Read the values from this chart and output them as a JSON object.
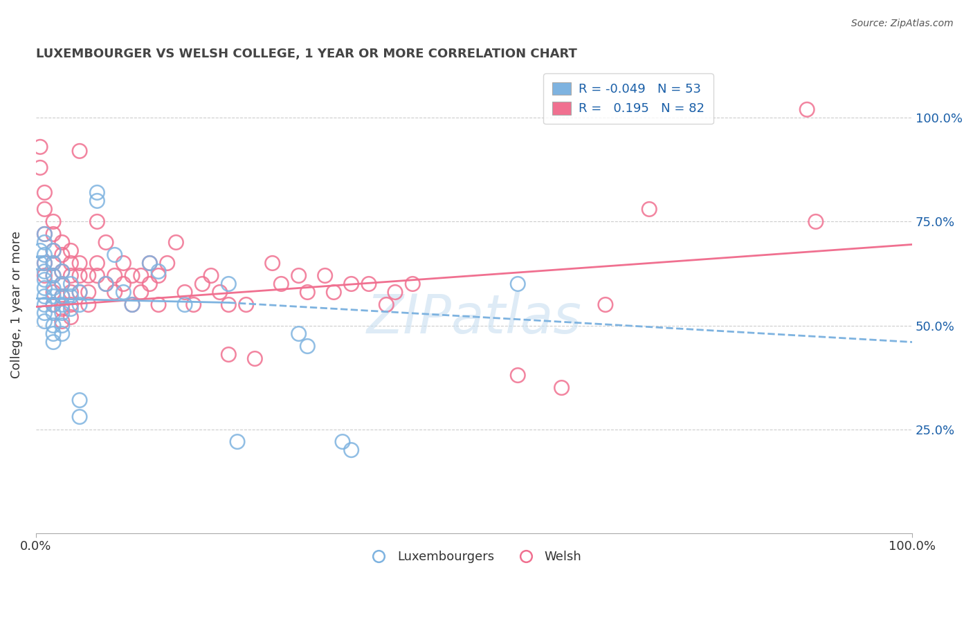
{
  "title": "LUXEMBOURGER VS WELSH COLLEGE, 1 YEAR OR MORE CORRELATION CHART",
  "source_text": "Source: ZipAtlas.com",
  "ylabel": "College, 1 year or more",
  "xlim": [
    0.0,
    1.0
  ],
  "ylim": [
    0.0,
    1.1
  ],
  "ytick_positions": [
    0.25,
    0.5,
    0.75,
    1.0
  ],
  "ytick_labels": [
    "25.0%",
    "50.0%",
    "75.0%",
    "100.0%"
  ],
  "xtick_positions": [
    0.0,
    1.0
  ],
  "xtick_labels": [
    "0.0%",
    "100.0%"
  ],
  "grid_color": "#cccccc",
  "watermark": "ZIPatlas",
  "blue_color": "#7eb3e0",
  "pink_color": "#f07090",
  "blue_R": -0.049,
  "blue_N": 53,
  "pink_R": 0.195,
  "pink_N": 82,
  "legend_text_color": "#1a5fa8",
  "blue_line_solid": [
    [
      0.0,
      0.565
    ],
    [
      0.22,
      0.555
    ]
  ],
  "blue_line_dashed": [
    [
      0.22,
      0.555
    ],
    [
      1.0,
      0.46
    ]
  ],
  "pink_line": [
    [
      0.0,
      0.545
    ],
    [
      1.0,
      0.695
    ]
  ],
  "blue_scatter": [
    [
      0.005,
      0.68
    ],
    [
      0.005,
      0.65
    ],
    [
      0.01,
      0.72
    ],
    [
      0.01,
      0.7
    ],
    [
      0.01,
      0.67
    ],
    [
      0.01,
      0.65
    ],
    [
      0.01,
      0.63
    ],
    [
      0.01,
      0.61
    ],
    [
      0.01,
      0.59
    ],
    [
      0.01,
      0.57
    ],
    [
      0.01,
      0.55
    ],
    [
      0.01,
      0.53
    ],
    [
      0.01,
      0.51
    ],
    [
      0.02,
      0.68
    ],
    [
      0.02,
      0.65
    ],
    [
      0.02,
      0.62
    ],
    [
      0.02,
      0.59
    ],
    [
      0.02,
      0.57
    ],
    [
      0.02,
      0.55
    ],
    [
      0.02,
      0.53
    ],
    [
      0.02,
      0.5
    ],
    [
      0.02,
      0.48
    ],
    [
      0.02,
      0.46
    ],
    [
      0.03,
      0.63
    ],
    [
      0.03,
      0.6
    ],
    [
      0.03,
      0.57
    ],
    [
      0.03,
      0.55
    ],
    [
      0.03,
      0.53
    ],
    [
      0.03,
      0.5
    ],
    [
      0.03,
      0.48
    ],
    [
      0.04,
      0.6
    ],
    [
      0.04,
      0.57
    ],
    [
      0.04,
      0.54
    ],
    [
      0.05,
      0.58
    ],
    [
      0.05,
      0.55
    ],
    [
      0.07,
      0.82
    ],
    [
      0.07,
      0.8
    ],
    [
      0.08,
      0.6
    ],
    [
      0.09,
      0.67
    ],
    [
      0.1,
      0.58
    ],
    [
      0.11,
      0.55
    ],
    [
      0.13,
      0.65
    ],
    [
      0.14,
      0.63
    ],
    [
      0.17,
      0.55
    ],
    [
      0.22,
      0.6
    ],
    [
      0.05,
      0.32
    ],
    [
      0.05,
      0.28
    ],
    [
      0.23,
      0.22
    ],
    [
      0.3,
      0.48
    ],
    [
      0.31,
      0.45
    ],
    [
      0.35,
      0.22
    ],
    [
      0.36,
      0.2
    ],
    [
      0.55,
      0.6
    ]
  ],
  "pink_scatter": [
    [
      0.005,
      0.93
    ],
    [
      0.005,
      0.88
    ],
    [
      0.01,
      0.82
    ],
    [
      0.01,
      0.78
    ],
    [
      0.01,
      0.72
    ],
    [
      0.01,
      0.65
    ],
    [
      0.01,
      0.62
    ],
    [
      0.02,
      0.75
    ],
    [
      0.02,
      0.72
    ],
    [
      0.02,
      0.68
    ],
    [
      0.02,
      0.65
    ],
    [
      0.02,
      0.62
    ],
    [
      0.02,
      0.58
    ],
    [
      0.02,
      0.55
    ],
    [
      0.03,
      0.7
    ],
    [
      0.03,
      0.67
    ],
    [
      0.03,
      0.63
    ],
    [
      0.03,
      0.6
    ],
    [
      0.03,
      0.57
    ],
    [
      0.03,
      0.54
    ],
    [
      0.03,
      0.51
    ],
    [
      0.04,
      0.68
    ],
    [
      0.04,
      0.65
    ],
    [
      0.04,
      0.62
    ],
    [
      0.04,
      0.58
    ],
    [
      0.04,
      0.55
    ],
    [
      0.04,
      0.52
    ],
    [
      0.05,
      0.92
    ],
    [
      0.05,
      0.65
    ],
    [
      0.05,
      0.62
    ],
    [
      0.05,
      0.58
    ],
    [
      0.06,
      0.62
    ],
    [
      0.06,
      0.58
    ],
    [
      0.06,
      0.55
    ],
    [
      0.07,
      0.75
    ],
    [
      0.07,
      0.65
    ],
    [
      0.07,
      0.62
    ],
    [
      0.08,
      0.7
    ],
    [
      0.08,
      0.6
    ],
    [
      0.09,
      0.62
    ],
    [
      0.09,
      0.58
    ],
    [
      0.1,
      0.65
    ],
    [
      0.1,
      0.6
    ],
    [
      0.11,
      0.62
    ],
    [
      0.11,
      0.55
    ],
    [
      0.12,
      0.62
    ],
    [
      0.12,
      0.58
    ],
    [
      0.13,
      0.65
    ],
    [
      0.13,
      0.6
    ],
    [
      0.14,
      0.62
    ],
    [
      0.14,
      0.55
    ],
    [
      0.15,
      0.65
    ],
    [
      0.16,
      0.7
    ],
    [
      0.17,
      0.58
    ],
    [
      0.18,
      0.55
    ],
    [
      0.19,
      0.6
    ],
    [
      0.2,
      0.62
    ],
    [
      0.21,
      0.58
    ],
    [
      0.22,
      0.55
    ],
    [
      0.22,
      0.43
    ],
    [
      0.24,
      0.55
    ],
    [
      0.25,
      0.42
    ],
    [
      0.27,
      0.65
    ],
    [
      0.28,
      0.6
    ],
    [
      0.3,
      0.62
    ],
    [
      0.31,
      0.58
    ],
    [
      0.33,
      0.62
    ],
    [
      0.34,
      0.58
    ],
    [
      0.36,
      0.6
    ],
    [
      0.38,
      0.6
    ],
    [
      0.4,
      0.55
    ],
    [
      0.41,
      0.58
    ],
    [
      0.43,
      0.6
    ],
    [
      0.55,
      0.38
    ],
    [
      0.6,
      0.35
    ],
    [
      0.65,
      0.55
    ],
    [
      0.7,
      0.78
    ],
    [
      0.88,
      1.02
    ],
    [
      0.89,
      0.75
    ]
  ]
}
